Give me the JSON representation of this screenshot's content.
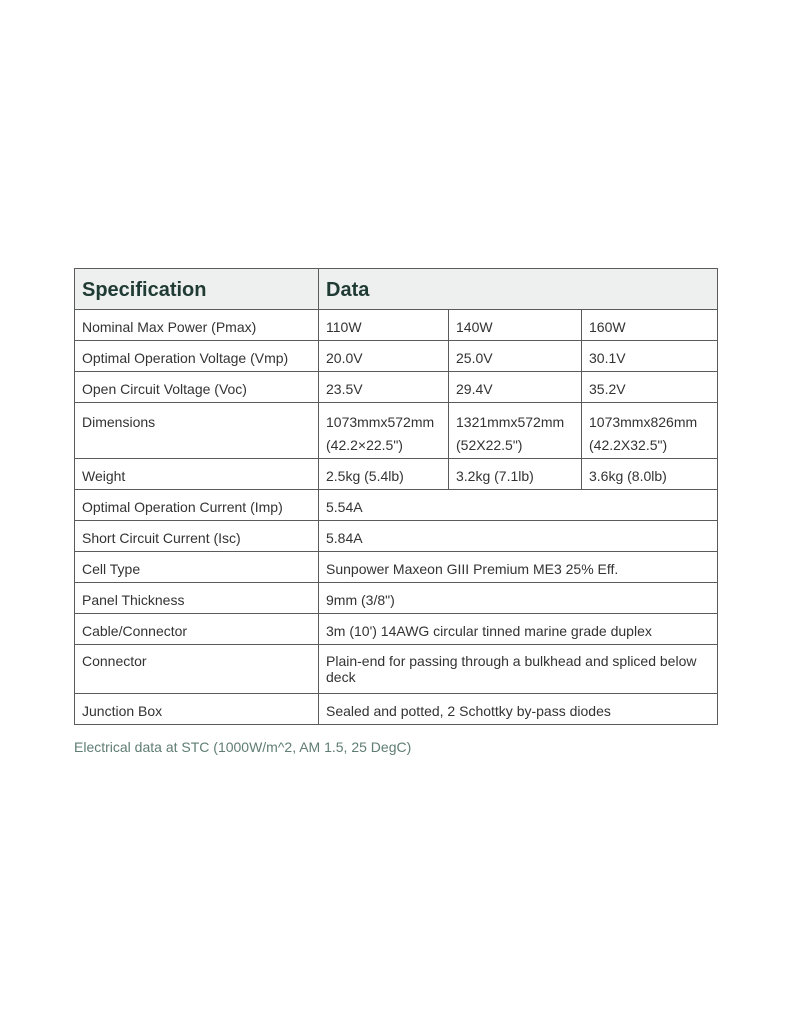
{
  "table": {
    "headers": [
      "Specification",
      "Data"
    ],
    "multi_rows": [
      {
        "label": "Nominal Max Power (Pmax)",
        "values": [
          "110W",
          "140W",
          "160W"
        ]
      },
      {
        "label": "Optimal Operation Voltage (Vmp)",
        "values": [
          "20.0V",
          "25.0V",
          "30.1V"
        ]
      },
      {
        "label": "Open Circuit Voltage (Voc)",
        "values": [
          "23.5V",
          "29.4V",
          "35.2V"
        ]
      },
      {
        "label": "Dimensions",
        "values": [
          "1073mmx572mm",
          "1321mmx572mm",
          "1073mmx826mm"
        ],
        "values2": [
          "(42.2×22.5\")",
          "(52X22.5\")",
          "(42.2X32.5\")"
        ]
      },
      {
        "label": "Weight",
        "values": [
          "2.5kg (5.4lb)",
          "3.2kg (7.1lb)",
          "3.6kg (8.0lb)"
        ]
      }
    ],
    "single_rows": [
      {
        "label": "Optimal Operation Current (Imp)",
        "value": "5.54A"
      },
      {
        "label": "Short Circuit Current (Isc)",
        "value": "5.84A"
      },
      {
        "label": "Cell Type",
        "value": "Sunpower Maxeon GIII Premium ME3 25% Eff."
      },
      {
        "label": "Panel Thickness",
        "value": "9mm (3/8\")"
      },
      {
        "label": "Cable/Connector",
        "value": "3m (10') 14AWG circular tinned marine grade duplex"
      },
      {
        "label": "Connector",
        "value": "Plain-end for passing through a bulkhead and spliced below deck"
      },
      {
        "label": "Junction Box",
        "value": "Sealed and potted, 2 Schottky by-pass diodes"
      }
    ]
  },
  "caption": "Electrical data at STC (1000W/m^2, AM 1.5, 25 DegC)",
  "colors": {
    "header_bg": "#eef0ef",
    "header_text": "#1f3b33",
    "caption": "#5f7d74"
  }
}
